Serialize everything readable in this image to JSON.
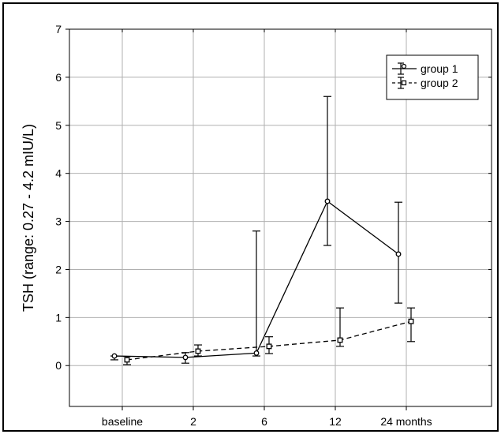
{
  "chart_data": {
    "type": "line",
    "title": "",
    "xlabel": "",
    "ylabel": "TSH (range: 0.27 - 4.2 mIU/L)",
    "categories": [
      "baseline",
      "2",
      "6",
      "12",
      "24 months"
    ],
    "ylim": [
      -0.85,
      7
    ],
    "yticks": [
      0,
      1,
      2,
      3,
      4,
      5,
      6,
      7
    ],
    "grid": true,
    "legend_position": "top-right",
    "series": [
      {
        "name": "group 1",
        "line_style": "solid",
        "marker": "circle",
        "values": [
          0.2,
          0.17,
          0.26,
          3.42,
          2.32
        ],
        "error_low": [
          0.12,
          0.05,
          0.2,
          2.5,
          1.3
        ],
        "error_high": [
          0.2,
          0.27,
          2.8,
          5.6,
          3.4
        ]
      },
      {
        "name": "group 2",
        "line_style": "dashed",
        "marker": "square",
        "values": [
          0.12,
          0.3,
          0.4,
          0.53,
          0.92
        ],
        "error_low": [
          0.02,
          0.2,
          0.25,
          0.4,
          0.5
        ],
        "error_high": [
          0.19,
          0.43,
          0.6,
          1.2,
          1.2
        ]
      }
    ],
    "colors": {
      "line": "#000000",
      "grid": "#b0b0b0",
      "frame": "#000000"
    }
  }
}
